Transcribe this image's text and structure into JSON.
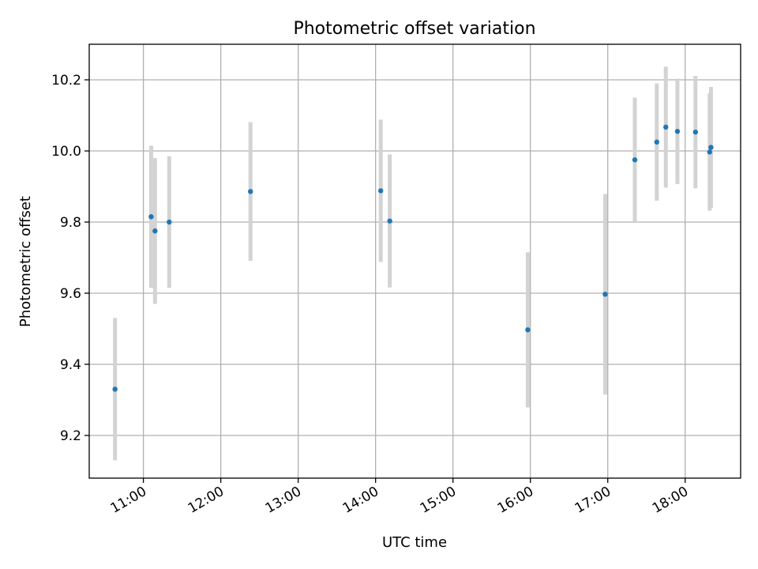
{
  "chart_data": {
    "type": "scatter",
    "title": "Photometric offset variation",
    "xlabel": "UTC time",
    "ylabel": "Photometric offset",
    "x_unit": "time-of-day",
    "xlim": [
      "10:18",
      "18:43"
    ],
    "ylim": [
      9.08,
      10.3
    ],
    "x_ticks": [
      "11:00",
      "12:00",
      "13:00",
      "14:00",
      "15:00",
      "16:00",
      "17:00",
      "18:00"
    ],
    "y_ticks": [
      "9.2",
      "9.4",
      "9.6",
      "9.8",
      "10.0",
      "10.2"
    ],
    "grid": true,
    "legend": "none",
    "colors": {
      "point": "#1f77b4",
      "errorbar": "#d3d3d3"
    },
    "series": [
      {
        "points": [
          {
            "x": "10:38",
            "y": 9.33,
            "err": 0.2
          },
          {
            "x": "11:06",
            "y": 9.815,
            "err": 0.2
          },
          {
            "x": "11:09",
            "y": 9.775,
            "err": 0.205
          },
          {
            "x": "11:20",
            "y": 9.8,
            "err": 0.185
          },
          {
            "x": "12:23",
            "y": 9.886,
            "err": 0.195
          },
          {
            "x": "14:04",
            "y": 9.888,
            "err": 0.2
          },
          {
            "x": "14:11",
            "y": 9.803,
            "err": 0.187
          },
          {
            "x": "15:58",
            "y": 9.497,
            "err": 0.218
          },
          {
            "x": "16:58",
            "y": 9.597,
            "err": 0.282
          },
          {
            "x": "17:21",
            "y": 9.975,
            "err": 0.175
          },
          {
            "x": "17:38",
            "y": 10.025,
            "err": 0.165
          },
          {
            "x": "17:45",
            "y": 10.067,
            "err": 0.17
          },
          {
            "x": "17:54",
            "y": 10.055,
            "err": 0.148
          },
          {
            "x": "18:08",
            "y": 10.053,
            "err": 0.158
          },
          {
            "x": "18:19",
            "y": 9.997,
            "err": 0.165
          },
          {
            "x": "18:20",
            "y": 10.01,
            "err": 0.17
          }
        ]
      }
    ]
  }
}
